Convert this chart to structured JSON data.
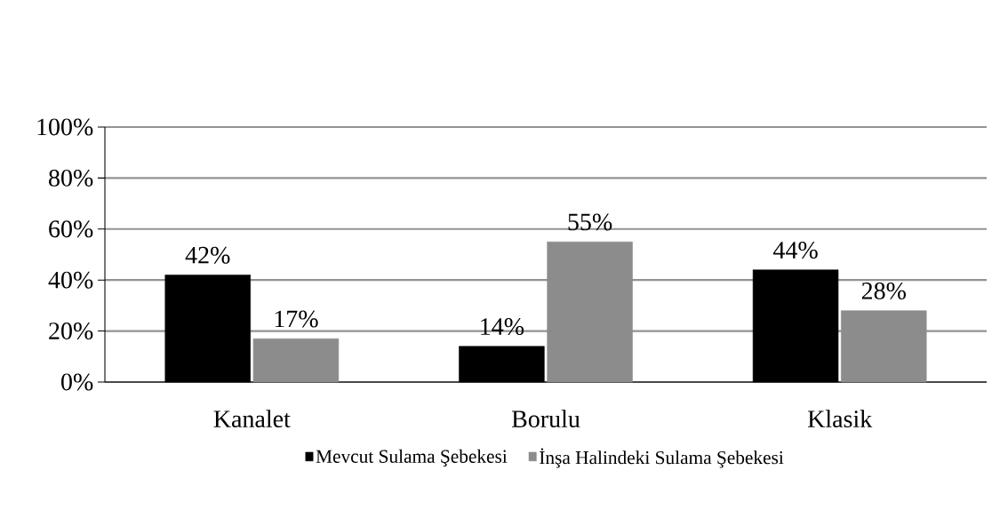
{
  "chart_data": {
    "type": "bar",
    "categories": [
      "Kanalet",
      "Borulu",
      "Klasik"
    ],
    "series": [
      {
        "name": "Mevcut Sulama Şebekesi",
        "color": "#000000",
        "values": [
          42,
          14,
          44
        ],
        "value_labels": [
          "42%",
          "14%",
          "44%"
        ]
      },
      {
        "name": "İnşa Halindeki Sulama Şebekesi",
        "color": "#8c8c8c",
        "values": [
          17,
          55,
          28
        ],
        "value_labels": [
          "17%",
          "55%",
          "28%"
        ]
      }
    ],
    "ylim": [
      0,
      100
    ],
    "yticks": [
      {
        "value": 0,
        "label": "0%"
      },
      {
        "value": 20,
        "label": "20%"
      },
      {
        "value": 40,
        "label": "40%"
      },
      {
        "value": 60,
        "label": "60%"
      },
      {
        "value": 80,
        "label": "80%"
      },
      {
        "value": 100,
        "label": "100%"
      }
    ],
    "grid": "y",
    "legend": "bottom"
  }
}
